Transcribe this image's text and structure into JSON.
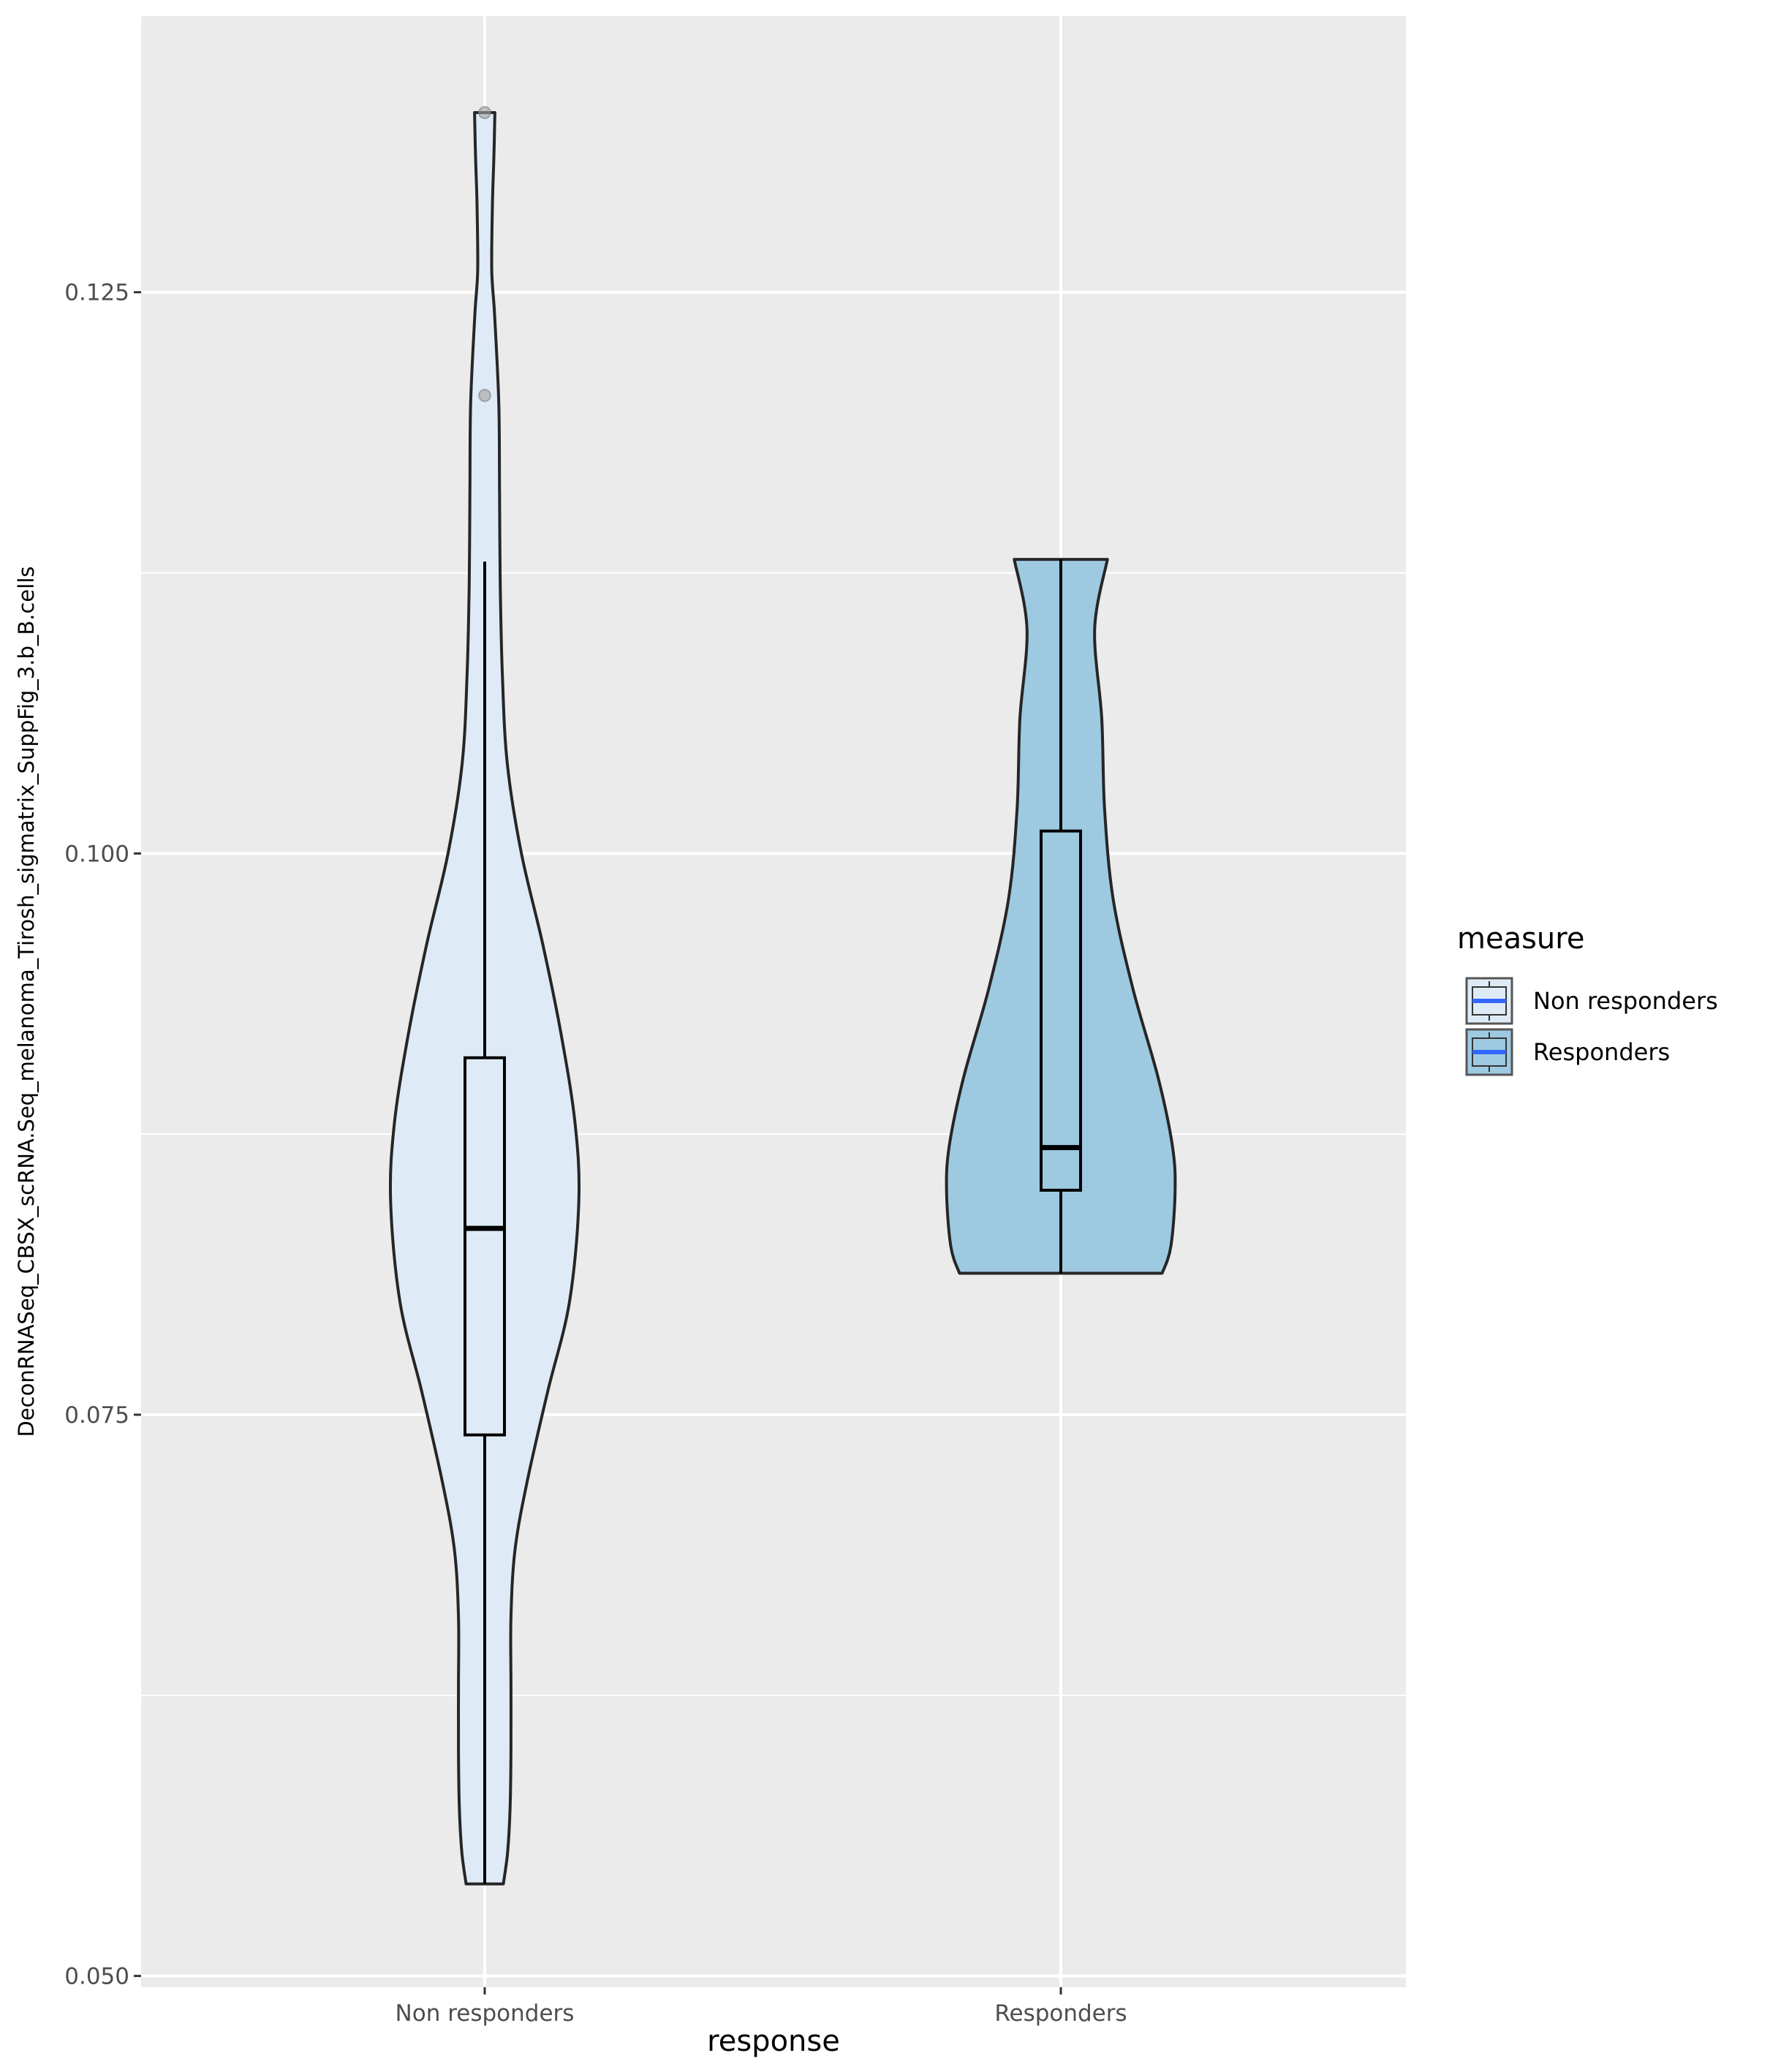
{
  "chart_data": {
    "type": "violin",
    "xlabel": "response",
    "ylabel": "DeconRNASeq_CBSX_scRNA.Seq_melanoma_Tirosh_sigmatrix_SuppFig_3.b_B.cells",
    "categories": [
      "Non responders",
      "Responders"
    ],
    "ylim": [
      0.0495,
      0.1373
    ],
    "yticks": [
      0.05,
      0.075,
      0.1,
      0.125
    ],
    "ytick_labels": [
      "0.050",
      "0.075",
      "0.100",
      "0.125"
    ],
    "grid": true,
    "legend": {
      "title": "measure",
      "placement": "right",
      "entries": [
        "Non responders",
        "Responders"
      ]
    },
    "colors": {
      "panel": "#EBEBEB",
      "grid": "#FFFFFF",
      "Non responders": "#DEEBF7",
      "Responders": "#9ECAE1",
      "outline": "#262626",
      "legend_median": "#3366FF",
      "outlier": "#A0A0A0"
    },
    "series": [
      {
        "name": "Non responders",
        "box": {
          "min": 0.0541,
          "q1": 0.0741,
          "median": 0.0833,
          "q3": 0.0909,
          "max": 0.113
        },
        "outliers": [
          0.133,
          0.1204
        ],
        "violin": {
          "y": [
            0.0541,
            0.0555,
            0.0575,
            0.06,
            0.063,
            0.066,
            0.069,
            0.072,
            0.076,
            0.08,
            0.0845,
            0.088,
            0.092,
            0.096,
            0.1,
            0.104,
            0.108,
            0.112,
            0.116,
            0.12,
            0.124,
            0.126,
            0.129,
            0.131,
            0.133
          ],
          "width": [
            0.132,
            0.162,
            0.18,
            0.186,
            0.186,
            0.186,
            0.215,
            0.3,
            0.445,
            0.6,
            0.667,
            0.64,
            0.54,
            0.41,
            0.26,
            0.16,
            0.125,
            0.11,
            0.105,
            0.1,
            0.07,
            0.05,
            0.055,
            0.065,
            0.072
          ]
        }
      },
      {
        "name": "Responders",
        "box": {
          "min": 0.0813,
          "q1": 0.085,
          "median": 0.0869,
          "q3": 0.101,
          "max": 0.1131
        },
        "outliers": [],
        "violin": {
          "y": [
            0.0813,
            0.0825,
            0.085,
            0.087,
            0.09,
            0.094,
            0.098,
            0.102,
            0.106,
            0.11,
            0.1131
          ],
          "width": [
            0.718,
            0.78,
            0.81,
            0.79,
            0.69,
            0.51,
            0.37,
            0.31,
            0.29,
            0.24,
            0.33
          ]
        }
      }
    ]
  }
}
